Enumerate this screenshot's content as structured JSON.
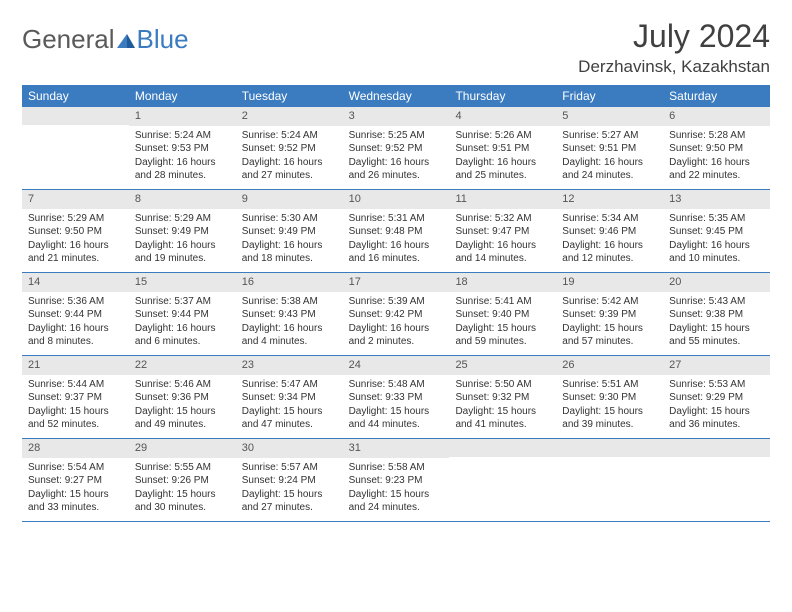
{
  "logo": {
    "general": "General",
    "blue": "Blue"
  },
  "title": "July 2024",
  "location": "Derzhavinsk, Kazakhstan",
  "colors": {
    "header_bg": "#3b7bbf",
    "header_text": "#ffffff",
    "daynum_bg": "#e8e8e8",
    "border": "#3b7bbf",
    "text": "#333333",
    "logo_gray": "#5a5a5a",
    "logo_blue": "#3b7bbf"
  },
  "day_names": [
    "Sunday",
    "Monday",
    "Tuesday",
    "Wednesday",
    "Thursday",
    "Friday",
    "Saturday"
  ],
  "weeks": [
    [
      {
        "n": "",
        "lines": []
      },
      {
        "n": "1",
        "lines": [
          "Sunrise: 5:24 AM",
          "Sunset: 9:53 PM",
          "Daylight: 16 hours and 28 minutes."
        ]
      },
      {
        "n": "2",
        "lines": [
          "Sunrise: 5:24 AM",
          "Sunset: 9:52 PM",
          "Daylight: 16 hours and 27 minutes."
        ]
      },
      {
        "n": "3",
        "lines": [
          "Sunrise: 5:25 AM",
          "Sunset: 9:52 PM",
          "Daylight: 16 hours and 26 minutes."
        ]
      },
      {
        "n": "4",
        "lines": [
          "Sunrise: 5:26 AM",
          "Sunset: 9:51 PM",
          "Daylight: 16 hours and 25 minutes."
        ]
      },
      {
        "n": "5",
        "lines": [
          "Sunrise: 5:27 AM",
          "Sunset: 9:51 PM",
          "Daylight: 16 hours and 24 minutes."
        ]
      },
      {
        "n": "6",
        "lines": [
          "Sunrise: 5:28 AM",
          "Sunset: 9:50 PM",
          "Daylight: 16 hours and 22 minutes."
        ]
      }
    ],
    [
      {
        "n": "7",
        "lines": [
          "Sunrise: 5:29 AM",
          "Sunset: 9:50 PM",
          "Daylight: 16 hours and 21 minutes."
        ]
      },
      {
        "n": "8",
        "lines": [
          "Sunrise: 5:29 AM",
          "Sunset: 9:49 PM",
          "Daylight: 16 hours and 19 minutes."
        ]
      },
      {
        "n": "9",
        "lines": [
          "Sunrise: 5:30 AM",
          "Sunset: 9:49 PM",
          "Daylight: 16 hours and 18 minutes."
        ]
      },
      {
        "n": "10",
        "lines": [
          "Sunrise: 5:31 AM",
          "Sunset: 9:48 PM",
          "Daylight: 16 hours and 16 minutes."
        ]
      },
      {
        "n": "11",
        "lines": [
          "Sunrise: 5:32 AM",
          "Sunset: 9:47 PM",
          "Daylight: 16 hours and 14 minutes."
        ]
      },
      {
        "n": "12",
        "lines": [
          "Sunrise: 5:34 AM",
          "Sunset: 9:46 PM",
          "Daylight: 16 hours and 12 minutes."
        ]
      },
      {
        "n": "13",
        "lines": [
          "Sunrise: 5:35 AM",
          "Sunset: 9:45 PM",
          "Daylight: 16 hours and 10 minutes."
        ]
      }
    ],
    [
      {
        "n": "14",
        "lines": [
          "Sunrise: 5:36 AM",
          "Sunset: 9:44 PM",
          "Daylight: 16 hours and 8 minutes."
        ]
      },
      {
        "n": "15",
        "lines": [
          "Sunrise: 5:37 AM",
          "Sunset: 9:44 PM",
          "Daylight: 16 hours and 6 minutes."
        ]
      },
      {
        "n": "16",
        "lines": [
          "Sunrise: 5:38 AM",
          "Sunset: 9:43 PM",
          "Daylight: 16 hours and 4 minutes."
        ]
      },
      {
        "n": "17",
        "lines": [
          "Sunrise: 5:39 AM",
          "Sunset: 9:42 PM",
          "Daylight: 16 hours and 2 minutes."
        ]
      },
      {
        "n": "18",
        "lines": [
          "Sunrise: 5:41 AM",
          "Sunset: 9:40 PM",
          "Daylight: 15 hours and 59 minutes."
        ]
      },
      {
        "n": "19",
        "lines": [
          "Sunrise: 5:42 AM",
          "Sunset: 9:39 PM",
          "Daylight: 15 hours and 57 minutes."
        ]
      },
      {
        "n": "20",
        "lines": [
          "Sunrise: 5:43 AM",
          "Sunset: 9:38 PM",
          "Daylight: 15 hours and 55 minutes."
        ]
      }
    ],
    [
      {
        "n": "21",
        "lines": [
          "Sunrise: 5:44 AM",
          "Sunset: 9:37 PM",
          "Daylight: 15 hours and 52 minutes."
        ]
      },
      {
        "n": "22",
        "lines": [
          "Sunrise: 5:46 AM",
          "Sunset: 9:36 PM",
          "Daylight: 15 hours and 49 minutes."
        ]
      },
      {
        "n": "23",
        "lines": [
          "Sunrise: 5:47 AM",
          "Sunset: 9:34 PM",
          "Daylight: 15 hours and 47 minutes."
        ]
      },
      {
        "n": "24",
        "lines": [
          "Sunrise: 5:48 AM",
          "Sunset: 9:33 PM",
          "Daylight: 15 hours and 44 minutes."
        ]
      },
      {
        "n": "25",
        "lines": [
          "Sunrise: 5:50 AM",
          "Sunset: 9:32 PM",
          "Daylight: 15 hours and 41 minutes."
        ]
      },
      {
        "n": "26",
        "lines": [
          "Sunrise: 5:51 AM",
          "Sunset: 9:30 PM",
          "Daylight: 15 hours and 39 minutes."
        ]
      },
      {
        "n": "27",
        "lines": [
          "Sunrise: 5:53 AM",
          "Sunset: 9:29 PM",
          "Daylight: 15 hours and 36 minutes."
        ]
      }
    ],
    [
      {
        "n": "28",
        "lines": [
          "Sunrise: 5:54 AM",
          "Sunset: 9:27 PM",
          "Daylight: 15 hours and 33 minutes."
        ]
      },
      {
        "n": "29",
        "lines": [
          "Sunrise: 5:55 AM",
          "Sunset: 9:26 PM",
          "Daylight: 15 hours and 30 minutes."
        ]
      },
      {
        "n": "30",
        "lines": [
          "Sunrise: 5:57 AM",
          "Sunset: 9:24 PM",
          "Daylight: 15 hours and 27 minutes."
        ]
      },
      {
        "n": "31",
        "lines": [
          "Sunrise: 5:58 AM",
          "Sunset: 9:23 PM",
          "Daylight: 15 hours and 24 minutes."
        ]
      },
      {
        "n": "",
        "lines": []
      },
      {
        "n": "",
        "lines": []
      },
      {
        "n": "",
        "lines": []
      }
    ]
  ]
}
